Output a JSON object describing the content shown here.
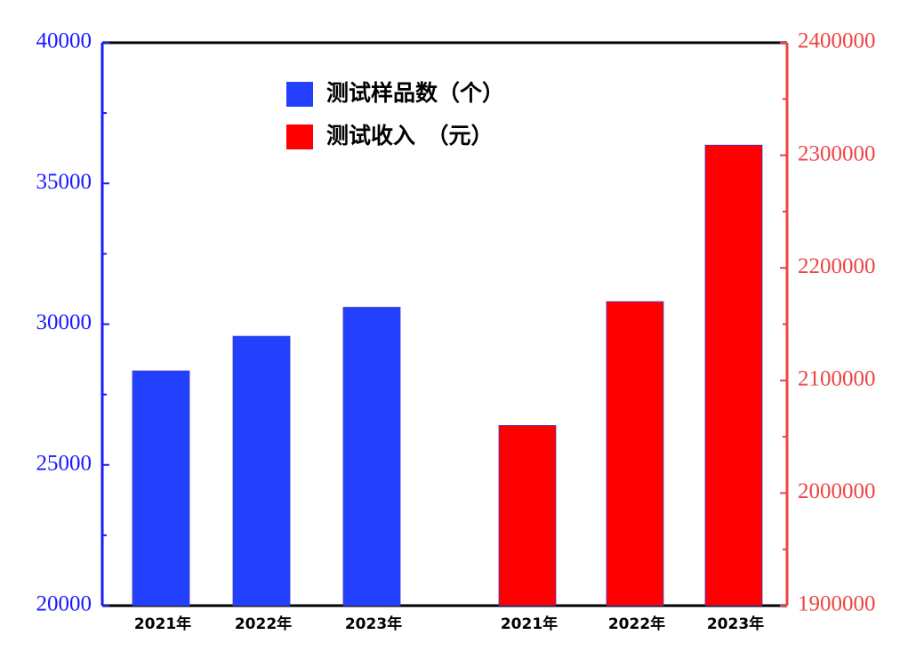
{
  "chart_data": {
    "type": "bar",
    "categories": [
      "2021年",
      "2022年",
      "2023年",
      "2021年",
      "2022年",
      "2023年"
    ],
    "series": [
      {
        "name": "测试样品数（个）",
        "color": "#2440ff",
        "values": [
          28340,
          29570,
          30600,
          null,
          null,
          null
        ]
      },
      {
        "name": "测试收入　（元）",
        "color": "#ff0000",
        "axis": "y2",
        "values": [
          null,
          null,
          null,
          2060000,
          2170000,
          2309000
        ]
      }
    ],
    "ylim": [
      20000,
      40000
    ],
    "yticks": [
      20000,
      25000,
      30000,
      35000,
      40000
    ],
    "y2lim": [
      1900000,
      2400000
    ],
    "y2ticks": [
      1900000,
      2000000,
      2100000,
      2200000,
      2300000,
      2400000
    ],
    "y_color": "#1a1aff",
    "y2_color": "#ee4444"
  }
}
